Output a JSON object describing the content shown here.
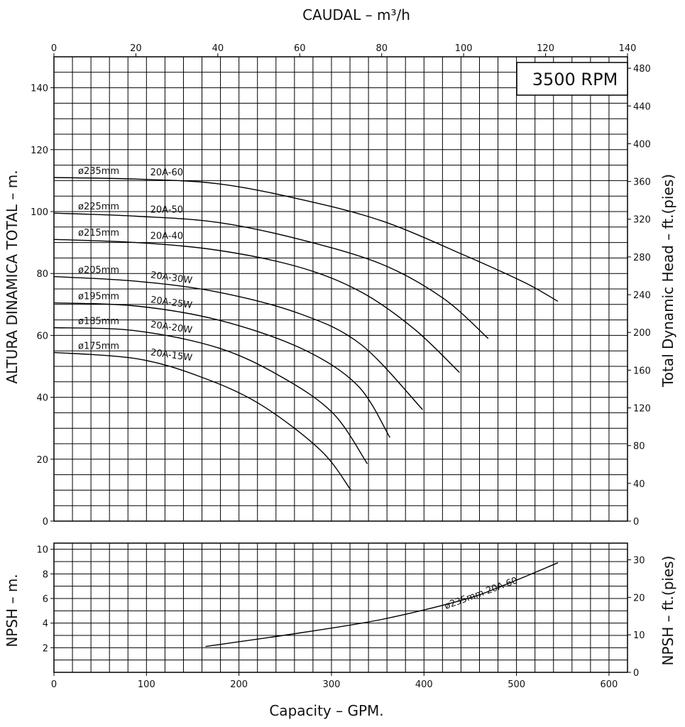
{
  "chart_data": [
    {
      "type": "line",
      "panel": "head",
      "title": "3500 RPM",
      "x_top_label": "CAUDAL  –  m³/h",
      "xlim_m3h": [
        0,
        140
      ],
      "x_top_ticks": [
        "0",
        "20",
        "40",
        "60",
        "80",
        "100",
        "120",
        "140"
      ],
      "ylabel": "ALTURA DINAMICA TOTAL  –  m.",
      "ylim": [
        0,
        150
      ],
      "y_ticks": [
        "0",
        "20",
        "40",
        "60",
        "80",
        "100",
        "120",
        "140"
      ],
      "y2label": "Total Dynamic Head  –  ft.(pies)",
      "y2_ticks": [
        "0",
        "40",
        "80",
        "120",
        "160",
        "200",
        "240",
        "280",
        "320",
        "360",
        "400",
        "440",
        "480"
      ],
      "grid": true,
      "series": [
        {
          "name": "ø235mm",
          "model": "20A-60",
          "x": [
            0,
            20,
            40,
            60,
            80,
            100,
            115,
            123
          ],
          "y": [
            111,
            110.5,
            109,
            104,
            97,
            86,
            77,
            71
          ]
        },
        {
          "name": "ø225mm",
          "model": "20A-50",
          "x": [
            0,
            20,
            40,
            60,
            80,
            95,
            106
          ],
          "y": [
            99.5,
            98.5,
            96.5,
            91,
            83,
            72,
            59
          ]
        },
        {
          "name": "ø215mm",
          "model": "20A-40",
          "x": [
            0,
            20,
            40,
            60,
            75,
            88,
            99
          ],
          "y": [
            91,
            90,
            87.5,
            82,
            74,
            62,
            48
          ]
        },
        {
          "name": "ø205mm",
          "model": "20A-30W",
          "x": [
            0,
            20,
            40,
            60,
            75,
            90
          ],
          "y": [
            79,
            77.5,
            74,
            67,
            57,
            36
          ]
        },
        {
          "name": "ø195mm",
          "model": "20A-25W",
          "x": [
            0,
            20,
            40,
            60,
            74,
            82
          ],
          "y": [
            70.5,
            69.5,
            65,
            56,
            44,
            27
          ]
        },
        {
          "name": "ø185mm",
          "model": "20A-20W",
          "x": [
            0,
            20,
            40,
            55,
            68,
            76.5
          ],
          "y": [
            62.5,
            61.5,
            56,
            47,
            35,
            18.5
          ]
        },
        {
          "name": "ø175mm",
          "model": "20A-15W",
          "x": [
            0,
            20,
            35,
            50,
            65,
            72.5
          ],
          "y": [
            54.5,
            52.5,
            47,
            38,
            23,
            10
          ]
        }
      ]
    },
    {
      "type": "line",
      "panel": "npsh",
      "ylabel": "NPSH  –  m.",
      "ylim": [
        0,
        10.5
      ],
      "y_ticks": [
        "2",
        "4",
        "6",
        "8",
        "10"
      ],
      "y2label": "NPSH  –  ft.(pies)",
      "y2_ticks": [
        "0",
        "10",
        "20",
        "30"
      ],
      "xlabel": "Capacity  –  GPM.",
      "xlim_gpm": [
        0,
        620
      ],
      "x_ticks": [
        "0",
        "100",
        "200",
        "300",
        "400",
        "500",
        "600"
      ],
      "grid": true,
      "series": [
        {
          "name": "ø235mm",
          "model": "20A-60",
          "x": [
            37,
            60,
            80,
            100,
            110,
            123
          ],
          "y": [
            2.1,
            3.2,
            4.3,
            5.9,
            7.1,
            8.9
          ]
        }
      ]
    }
  ]
}
